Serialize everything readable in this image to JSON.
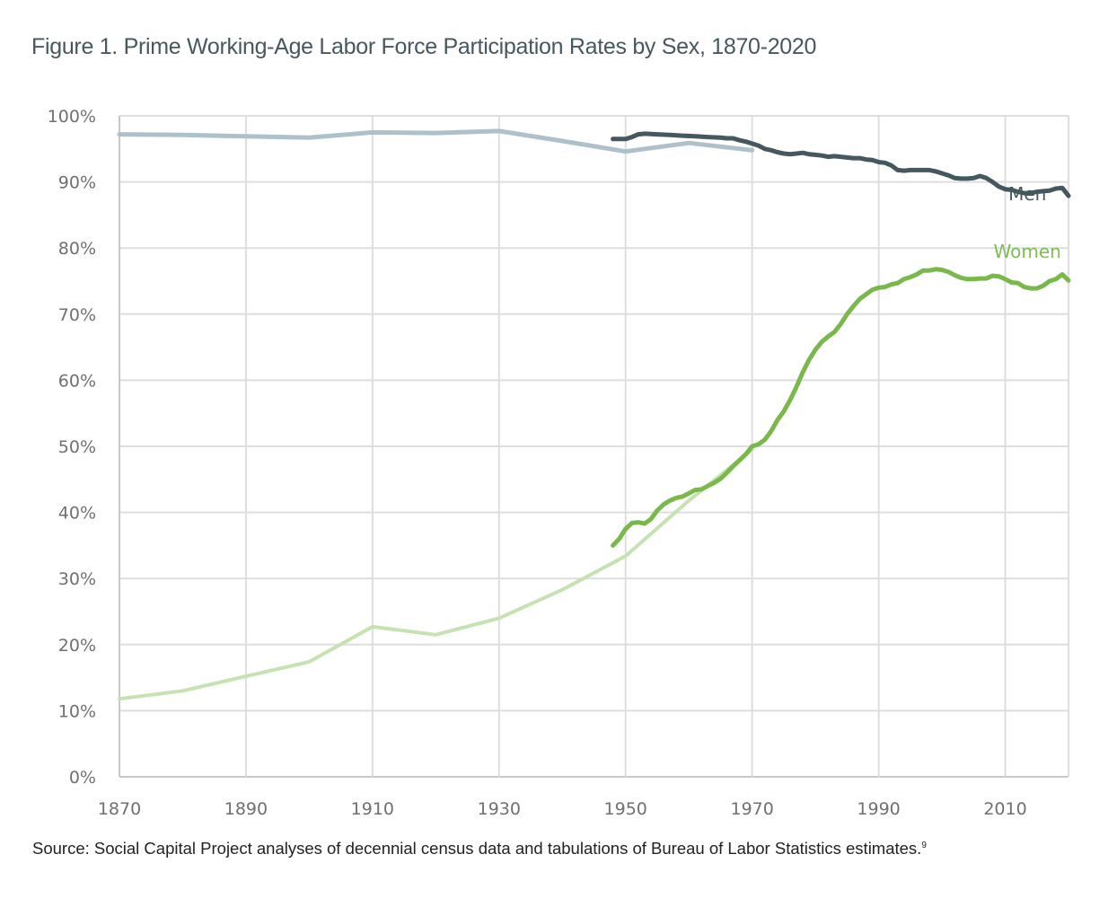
{
  "title": "Figure 1. Prime Working-Age Labor Force Participation Rates by Sex, 1870-2020",
  "source": {
    "text": "Source: Social Capital Project analyses of decennial census data and tabulations of Bureau of Labor Statistics estimates.",
    "footnote": "9"
  },
  "chart_data": {
    "type": "line",
    "title": "Figure 1. Prime Working-Age Labor Force Participation Rates by Sex, 1870-2020",
    "xlabel": "",
    "ylabel": "",
    "xlim": [
      1870,
      2020
    ],
    "ylim": [
      0,
      100
    ],
    "x_ticks": [
      1870,
      1890,
      1910,
      1930,
      1950,
      1970,
      1990,
      2010
    ],
    "x_tick_labels": [
      "1870",
      "1890",
      "1910",
      "1930",
      "1950",
      "1970",
      "1990",
      "2010"
    ],
    "x_grid": [
      1870,
      1890,
      1910,
      1930,
      1950,
      1970,
      1990,
      2010,
      2020
    ],
    "y_ticks": [
      0,
      10,
      20,
      30,
      40,
      50,
      60,
      70,
      80,
      90,
      100
    ],
    "y_tick_labels": [
      "0%",
      "10%",
      "20%",
      "30%",
      "40%",
      "50%",
      "60%",
      "70%",
      "80%",
      "90%",
      "100%"
    ],
    "grid": true,
    "legend": "inline labels near line ends",
    "series_labels": [
      {
        "text": "Men",
        "color": "#46585f",
        "at": [
          2013.5,
          87.2
        ]
      },
      {
        "text": "Women",
        "color": "#7dbd52",
        "at": [
          2013.5,
          78.5
        ]
      }
    ],
    "series": [
      {
        "name": "Men (decennial census)",
        "color": "#aec1cb",
        "x": [
          1870,
          1880,
          1890,
          1900,
          1910,
          1920,
          1930,
          1940,
          1950,
          1960,
          1970
        ],
        "values": [
          97.2,
          97.1,
          96.9,
          96.7,
          97.5,
          97.4,
          97.7,
          96.2,
          94.6,
          95.9,
          94.8
        ]
      },
      {
        "name": "Women (decennial census)",
        "color": "#c6e2b3",
        "x": [
          1870,
          1880,
          1890,
          1900,
          1910,
          1920,
          1930,
          1940,
          1950,
          1960,
          1970
        ],
        "values": [
          11.8,
          13.0,
          15.2,
          17.4,
          22.7,
          21.5,
          24.0,
          28.3,
          33.4,
          41.8,
          49.5
        ]
      },
      {
        "name": "Men (BLS)",
        "color": "#46585f",
        "x": [
          1948,
          1950,
          1951,
          1952,
          1953,
          1955,
          1957,
          1959,
          1961,
          1963,
          1965,
          1966,
          1967,
          1968,
          1969,
          1970,
          1971,
          1972,
          1973,
          1974,
          1975,
          1976,
          1977,
          1978,
          1979,
          1980,
          1981,
          1982,
          1983,
          1984,
          1985,
          1986,
          1987,
          1988,
          1989,
          1990,
          1991,
          1992,
          1993,
          1994,
          1995,
          1996,
          1997,
          1998,
          1999,
          2000,
          2001,
          2002,
          2003,
          2004,
          2005,
          2006,
          2007,
          2008,
          2009,
          2010,
          2011,
          2012,
          2013,
          2014,
          2015,
          2016,
          2017,
          2018,
          2019,
          2020
        ],
        "values": [
          96.5,
          96.5,
          96.8,
          97.2,
          97.3,
          97.2,
          97.1,
          97.0,
          96.9,
          96.8,
          96.7,
          96.6,
          96.6,
          96.3,
          96.1,
          95.8,
          95.5,
          95.0,
          94.8,
          94.5,
          94.3,
          94.2,
          94.3,
          94.4,
          94.2,
          94.1,
          94.0,
          93.8,
          93.9,
          93.8,
          93.7,
          93.6,
          93.6,
          93.4,
          93.3,
          93.0,
          92.9,
          92.5,
          91.8,
          91.7,
          91.8,
          91.8,
          91.8,
          91.8,
          91.6,
          91.3,
          91.0,
          90.6,
          90.5,
          90.5,
          90.6,
          90.9,
          90.6,
          90.0,
          89.3,
          88.9,
          88.8,
          88.5,
          88.3,
          88.3,
          88.5,
          88.6,
          88.7,
          89.0,
          89.1,
          87.9
        ]
      },
      {
        "name": "Women (BLS)",
        "color": "#7ab84c",
        "x": [
          1948,
          1949,
          1950,
          1951,
          1952,
          1953,
          1954,
          1955,
          1956,
          1957,
          1958,
          1959,
          1960,
          1961,
          1962,
          1963,
          1964,
          1965,
          1966,
          1967,
          1968,
          1969,
          1970,
          1971,
          1972,
          1973,
          1974,
          1975,
          1976,
          1977,
          1978,
          1979,
          1980,
          1981,
          1982,
          1983,
          1984,
          1985,
          1986,
          1987,
          1988,
          1989,
          1990,
          1991,
          1992,
          1993,
          1994,
          1995,
          1996,
          1997,
          1998,
          1999,
          2000,
          2001,
          2002,
          2003,
          2004,
          2005,
          2006,
          2007,
          2008,
          2009,
          2010,
          2011,
          2012,
          2013,
          2014,
          2015,
          2016,
          2017,
          2018,
          2019,
          2020
        ],
        "values": [
          35.0,
          36.0,
          37.5,
          38.4,
          38.5,
          38.3,
          39.0,
          40.3,
          41.2,
          41.8,
          42.2,
          42.4,
          42.9,
          43.4,
          43.5,
          44.0,
          44.5,
          45.1,
          46.0,
          47.0,
          47.9,
          48.8,
          50.0,
          50.3,
          51.0,
          52.3,
          54.0,
          55.3,
          57.0,
          59.0,
          61.2,
          63.1,
          64.6,
          65.8,
          66.6,
          67.3,
          68.5,
          70.0,
          71.2,
          72.3,
          73.0,
          73.7,
          74.0,
          74.1,
          74.5,
          74.7,
          75.3,
          75.6,
          76.0,
          76.6,
          76.6,
          76.8,
          76.7,
          76.4,
          75.9,
          75.5,
          75.3,
          75.3,
          75.4,
          75.4,
          75.8,
          75.7,
          75.3,
          74.8,
          74.7,
          74.1,
          73.9,
          73.9,
          74.3,
          75.0,
          75.3,
          76.0,
          75.1
        ]
      }
    ]
  }
}
